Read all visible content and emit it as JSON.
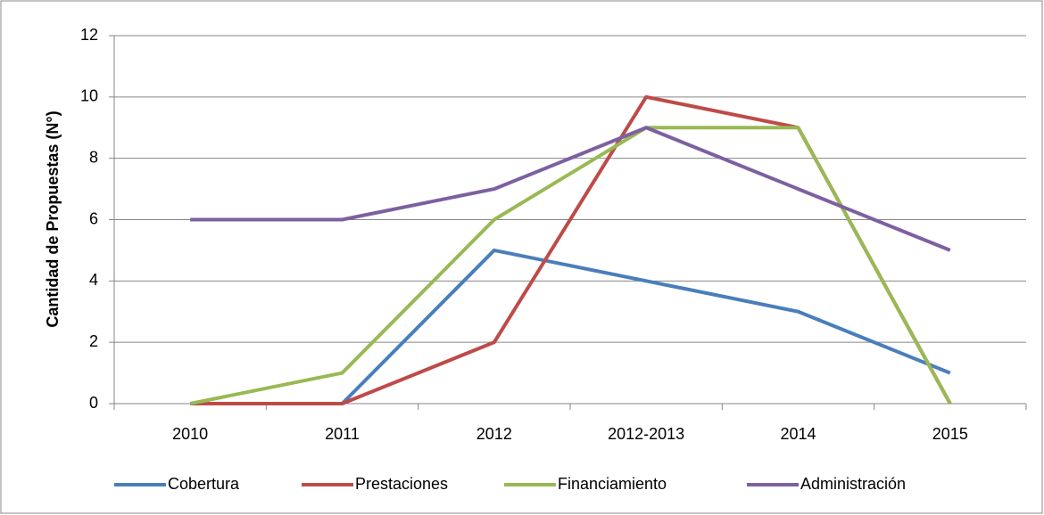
{
  "chart_data": {
    "type": "line",
    "y_label": "Cantidad de Propuestas (N°)",
    "categories": [
      "2010",
      "2011",
      "2012",
      "2012-2013",
      "2014",
      "2015"
    ],
    "series": [
      {
        "name": "Cobertura",
        "color": "#4a7ebb",
        "values": [
          0,
          0,
          5,
          4,
          3,
          1
        ]
      },
      {
        "name": "Prestaciones",
        "color": "#be4b48",
        "values": [
          0,
          0,
          2,
          10,
          9,
          0
        ]
      },
      {
        "name": "Financiamiento",
        "color": "#98b954",
        "values": [
          0,
          1,
          6,
          9,
          9,
          0
        ]
      },
      {
        "name": "Administración",
        "color": "#7d60a0",
        "values": [
          6,
          6,
          7,
          9,
          7,
          5
        ]
      }
    ],
    "ylim": [
      0,
      12
    ],
    "yticks": [
      0,
      2,
      4,
      6,
      8,
      10,
      12
    ],
    "grid": true,
    "legend": "bottom"
  }
}
